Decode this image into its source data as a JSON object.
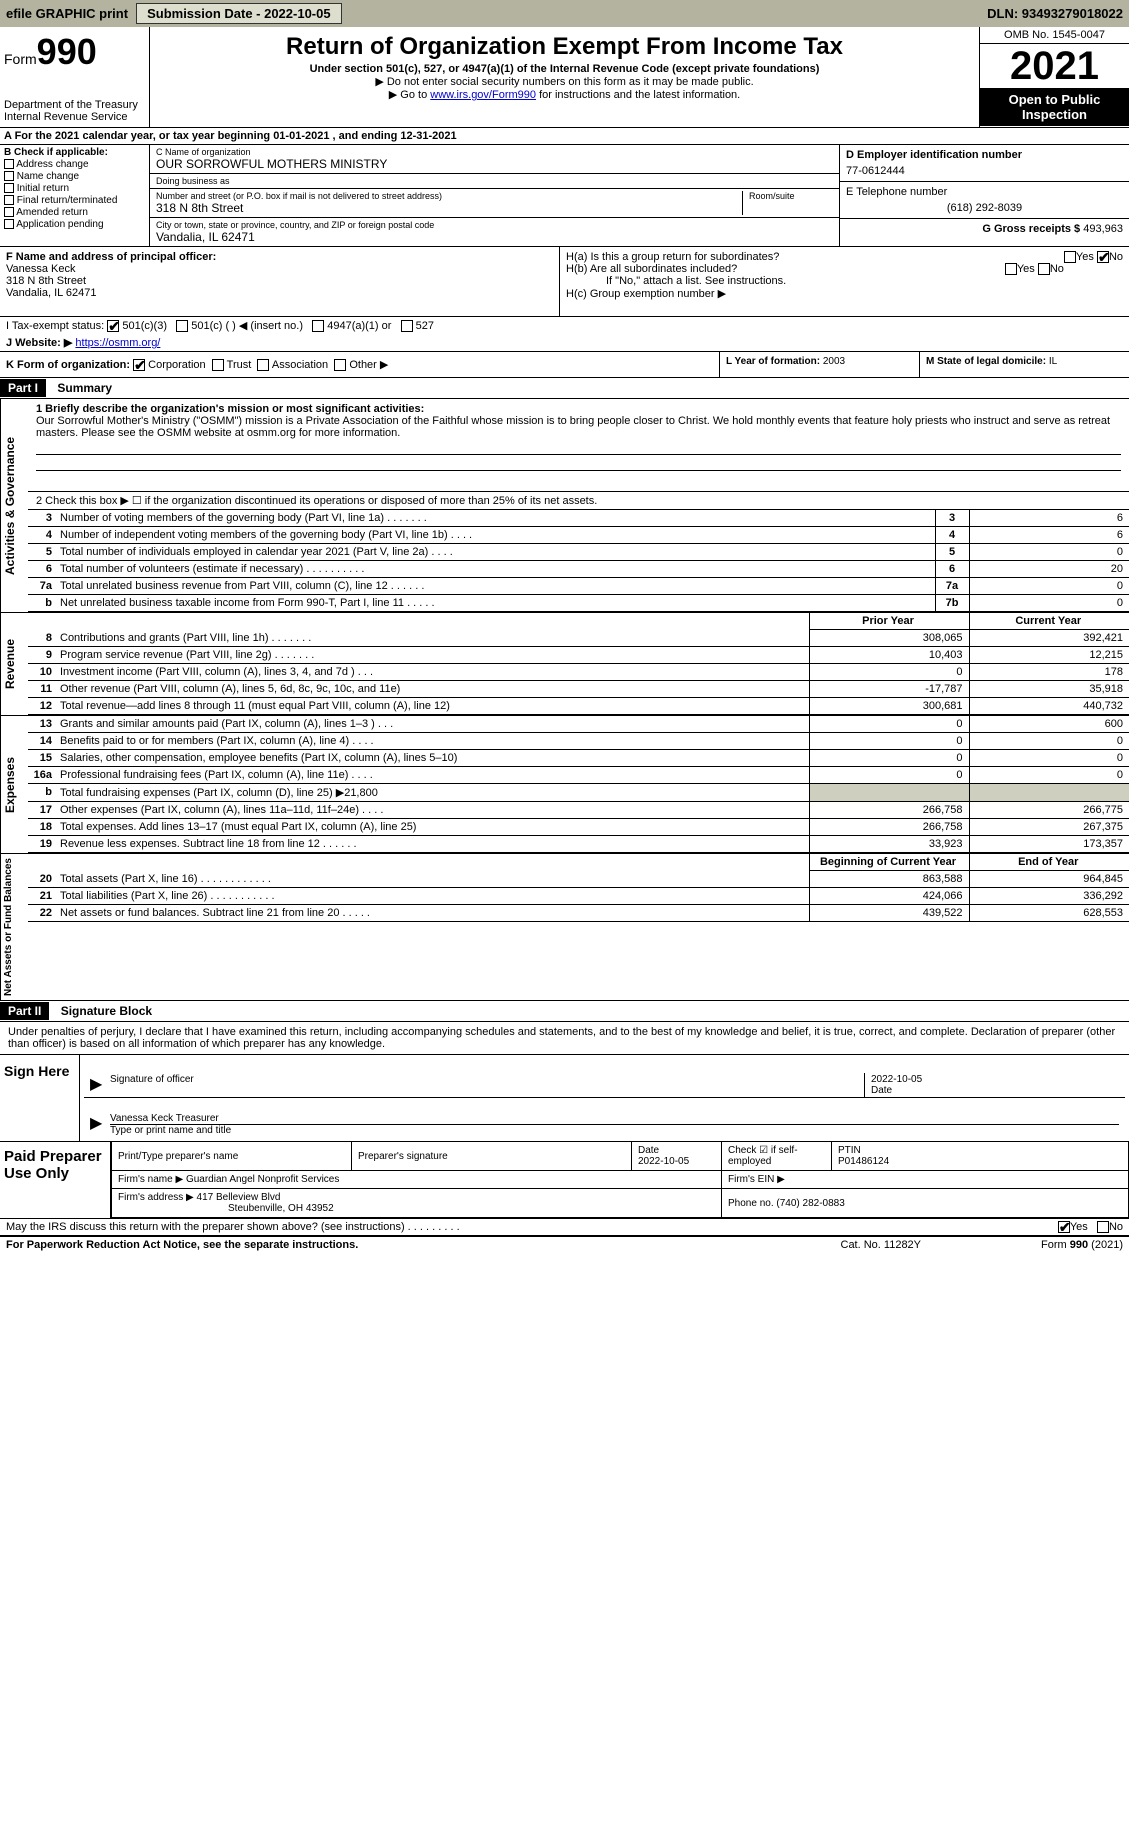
{
  "top_bar": {
    "efile": "efile GRAPHIC print",
    "submission_label": "Submission Date - 2022-10-05",
    "dln": "DLN: 93493279018022"
  },
  "header": {
    "form_prefix": "Form",
    "form_number": "990",
    "dept": "Department of the Treasury",
    "irs": "Internal Revenue Service",
    "title": "Return of Organization Exempt From Income Tax",
    "subtitle": "Under section 501(c), 527, or 4947(a)(1) of the Internal Revenue Code (except private foundations)",
    "note1": "▶ Do not enter social security numbers on this form as it may be made public.",
    "note2_pre": "▶ Go to ",
    "note2_link": "www.irs.gov/Form990",
    "note2_post": " for instructions and the latest information.",
    "omb": "OMB No. 1545-0047",
    "tax_year": "2021",
    "open": "Open to Public Inspection"
  },
  "period": "A For the 2021 calendar year, or tax year beginning 01-01-2021    , and ending 12-31-2021",
  "checkboxes": {
    "b_label": "B Check if applicable:",
    "addr_change": "Address change",
    "name_change": "Name change",
    "initial": "Initial return",
    "final": "Final return/terminated",
    "amended": "Amended return",
    "app_pending": "Application pending"
  },
  "entity": {
    "c_label": "C Name of organization",
    "name": "OUR SORROWFUL MOTHERS MINISTRY",
    "dba_label": "Doing business as",
    "dba": "",
    "street_label": "Number and street (or P.O. box if mail is not delivered to street address)",
    "street": "318 N 8th Street",
    "room_label": "Room/suite",
    "city_label": "City or town, state or province, country, and ZIP or foreign postal code",
    "city": "Vandalia, IL  62471"
  },
  "right_box": {
    "d_label": "D Employer identification number",
    "ein": "77-0612444",
    "e_label": "E Telephone number",
    "phone": "(618) 292-8039",
    "g_label": "G Gross receipts $",
    "gross": "493,963"
  },
  "f_block": {
    "label": "F Name and address of principal officer:",
    "name": "Vanessa Keck",
    "street": "318 N 8th Street",
    "city": "Vandalia, IL  62471"
  },
  "h_block": {
    "ha": "H(a)  Is this a group return for subordinates?",
    "hb": "H(b)  Are all subordinates included?",
    "hb_note": "If \"No,\" attach a list. See instructions.",
    "hc": "H(c)  Group exemption number ▶",
    "yes": "Yes",
    "no": "No"
  },
  "i_row": {
    "label": "I   Tax-exempt status:",
    "opt1": "501(c)(3)",
    "opt2": "501(c) (   ) ◀ (insert no.)",
    "opt3": "4947(a)(1) or",
    "opt4": "527"
  },
  "j_row": {
    "label": "J   Website: ▶",
    "url": "https://osmm.org/"
  },
  "k_row": {
    "label": "K Form of organization:",
    "corp": "Corporation",
    "trust": "Trust",
    "assoc": "Association",
    "other": "Other ▶",
    "l_label": "L Year of formation:",
    "l_val": "2003",
    "m_label": "M State of legal domicile:",
    "m_val": "IL"
  },
  "part1": {
    "header": "Part I",
    "title": "Summary",
    "q1_label": "1  Briefly describe the organization's mission or most significant activities:",
    "mission": "Our Sorrowful Mother's Ministry (\"OSMM\") mission is a Private Association of the Faithful whose mission is to bring people closer to Christ. We hold monthly events that feature holy priests who instruct and serve as retreat masters. Please see the OSMM website at osmm.org for more information.",
    "q2": "2   Check this box ▶ ☐  if the organization discontinued its operations or disposed of more than 25% of its net assets.",
    "section_ag": "Activities & Governance",
    "section_rev": "Revenue",
    "section_exp": "Expenses",
    "section_na": "Net Assets or Fund Balances",
    "rows_ag": [
      {
        "n": "3",
        "desc": "Number of voting members of the governing body (Part VI, line 1a)  .    .    .    .    .    .    .",
        "box": "3",
        "val": "6"
      },
      {
        "n": "4",
        "desc": "Number of independent voting members of the governing body (Part VI, line 1b)  .    .    .    .",
        "box": "4",
        "val": "6"
      },
      {
        "n": "5",
        "desc": "Total number of individuals employed in calendar year 2021 (Part V, line 2a)  .    .    .    .",
        "box": "5",
        "val": "0"
      },
      {
        "n": "6",
        "desc": "Total number of volunteers (estimate if necessary)   .    .    .    .    .    .    .    .    .    .",
        "box": "6",
        "val": "20"
      },
      {
        "n": "7a",
        "desc": "Total unrelated business revenue from Part VIII, column (C), line 12  .    .    .    .    .    .",
        "box": "7a",
        "val": "0"
      },
      {
        "n": "b",
        "desc": "Net unrelated business taxable income from Form 990-T, Part I, line 11  .    .    .    .    .",
        "box": "7b",
        "val": "0"
      }
    ],
    "hdr_prior": "Prior Year",
    "hdr_curr": "Current Year",
    "rows_rev": [
      {
        "n": "8",
        "desc": "Contributions and grants (Part VIII, line 1h)  .    .    .    .    .    .    .",
        "prior": "308,065",
        "curr": "392,421"
      },
      {
        "n": "9",
        "desc": "Program service revenue (Part VIII, line 2g)  .    .    .    .    .    .    .",
        "prior": "10,403",
        "curr": "12,215"
      },
      {
        "n": "10",
        "desc": "Investment income (Part VIII, column (A), lines 3, 4, and 7d )  .    .    .",
        "prior": "0",
        "curr": "178"
      },
      {
        "n": "11",
        "desc": "Other revenue (Part VIII, column (A), lines 5, 6d, 8c, 9c, 10c, and 11e)",
        "prior": "-17,787",
        "curr": "35,918"
      },
      {
        "n": "12",
        "desc": "Total revenue—add lines 8 through 11 (must equal Part VIII, column (A), line 12)",
        "prior": "300,681",
        "curr": "440,732"
      }
    ],
    "rows_exp": [
      {
        "n": "13",
        "desc": "Grants and similar amounts paid (Part IX, column (A), lines 1–3 )  .    .    .",
        "prior": "0",
        "curr": "600"
      },
      {
        "n": "14",
        "desc": "Benefits paid to or for members (Part IX, column (A), line 4)  .    .    .    .",
        "prior": "0",
        "curr": "0"
      },
      {
        "n": "15",
        "desc": "Salaries, other compensation, employee benefits (Part IX, column (A), lines 5–10)",
        "prior": "0",
        "curr": "0"
      },
      {
        "n": "16a",
        "desc": "Professional fundraising fees (Part IX, column (A), line 11e)  .    .    .    .",
        "prior": "0",
        "curr": "0"
      },
      {
        "n": "b",
        "desc": "Total fundraising expenses (Part IX, column (D), line 25) ▶21,800",
        "prior": "",
        "curr": "",
        "shade": true
      },
      {
        "n": "17",
        "desc": "Other expenses (Part IX, column (A), lines 11a–11d, 11f–24e)  .    .    .    .",
        "prior": "266,758",
        "curr": "266,775"
      },
      {
        "n": "18",
        "desc": "Total expenses. Add lines 13–17 (must equal Part IX, column (A), line 25)",
        "prior": "266,758",
        "curr": "267,375"
      },
      {
        "n": "19",
        "desc": "Revenue less expenses. Subtract line 18 from line 12  .    .    .    .    .    .",
        "prior": "33,923",
        "curr": "173,357"
      }
    ],
    "hdr_begin": "Beginning of Current Year",
    "hdr_end": "End of Year",
    "rows_na": [
      {
        "n": "20",
        "desc": "Total assets (Part X, line 16)  .    .    .    .    .    .    .    .    .    .    .    .",
        "prior": "863,588",
        "curr": "964,845"
      },
      {
        "n": "21",
        "desc": "Total liabilities (Part X, line 26)  .    .    .    .    .    .    .    .    .    .    .",
        "prior": "424,066",
        "curr": "336,292"
      },
      {
        "n": "22",
        "desc": "Net assets or fund balances. Subtract line 21 from line 20  .    .    .    .    .",
        "prior": "439,522",
        "curr": "628,553"
      }
    ]
  },
  "part2": {
    "header": "Part II",
    "title": "Signature Block",
    "intro": "Under penalties of perjury, I declare that I have examined this return, including accompanying schedules and statements, and to the best of my knowledge and belief, it is true, correct, and complete. Declaration of preparer (other than officer) is based on all information of which preparer has any knowledge."
  },
  "sign": {
    "label": "Sign Here",
    "sig_label": "Signature of officer",
    "date_label": "Date",
    "date": "2022-10-05",
    "name": "Vanessa Keck  Treasurer",
    "name_label": "Type or print name and title"
  },
  "prep": {
    "label": "Paid Preparer Use Only",
    "col1": "Print/Type preparer's name",
    "col2": "Preparer's signature",
    "col3": "Date",
    "col3v": "2022-10-05",
    "col4": "Check ☑ if self-employed",
    "col5": "PTIN",
    "ptin": "P01486124",
    "firm_name_label": "Firm's name    ▶",
    "firm_name": "Guardian Angel Nonprofit Services",
    "firm_ein_label": "Firm's EIN ▶",
    "firm_addr_label": "Firm's address ▶",
    "firm_addr1": "417 Belleview Blvd",
    "firm_addr2": "Steubenville, OH  43952",
    "phone_label": "Phone no.",
    "phone": "(740) 282-0883"
  },
  "discuss": {
    "q": "May the IRS discuss this return with the preparer shown above? (see instructions)  .    .    .    .    .    .    .    .    .",
    "yes": "Yes",
    "no": "No"
  },
  "footer": {
    "pra": "For Paperwork Reduction Act Notice, see the separate instructions.",
    "cat": "Cat. No. 11282Y",
    "form": "Form 990 (2021)"
  },
  "colors": {
    "topbar_bg": "#b3b3a0",
    "btn_bg": "#dedecf",
    "shade_bg": "#cfcfc0",
    "link": "#0000cc"
  }
}
